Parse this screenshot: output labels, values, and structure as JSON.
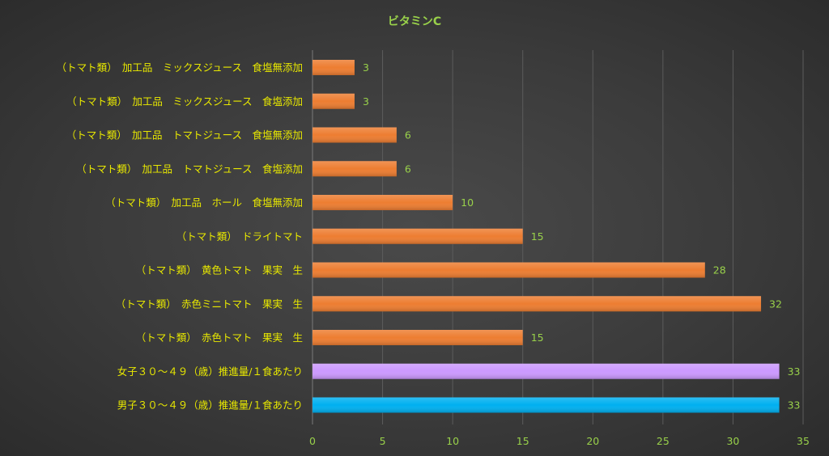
{
  "chart_data": {
    "type": "bar",
    "orientation": "horizontal",
    "title": "ビタミンC",
    "xlabel": "",
    "ylabel": "",
    "xlim": [
      0,
      35
    ],
    "xticks": [
      0,
      5,
      10,
      15,
      20,
      25,
      30,
      35
    ],
    "grid": true,
    "legend": "none",
    "categories": [
      "（トマト類）　加工品　ミックスジュース　食塩無添加",
      "（トマト類）　加工品　ミックスジュース　食塩添加",
      "（トマト類）　加工品　トマトジュース　食塩無添加",
      "（トマト類）　加工品　トマトジュース　食塩添加",
      "（トマト類）　加工品　ホール　食塩無添加",
      "（トマト類）　ドライトマト",
      "（トマト類）　黄色トマト　果実　生",
      "（トマト類）　赤色ミニトマト　果実　生",
      "（トマト類）　赤色トマト　果実　生",
      "女子３０～４９（歳）推進量/１食あたり",
      "男子３０～４９（歳）推進量/１食あたり"
    ],
    "values": [
      3,
      3,
      6,
      6,
      10,
      15,
      28,
      32,
      15,
      33.3,
      33.3
    ],
    "data_labels": [
      "3",
      "3",
      "6",
      "6",
      "10",
      "15",
      "28",
      "32",
      "15",
      "33",
      "33"
    ],
    "colors": [
      "#ed7d31",
      "#ed7d31",
      "#ed7d31",
      "#ed7d31",
      "#ed7d31",
      "#ed7d31",
      "#ed7d31",
      "#ed7d31",
      "#ed7d31",
      "#cc99ff",
      "#00b0f0"
    ]
  }
}
